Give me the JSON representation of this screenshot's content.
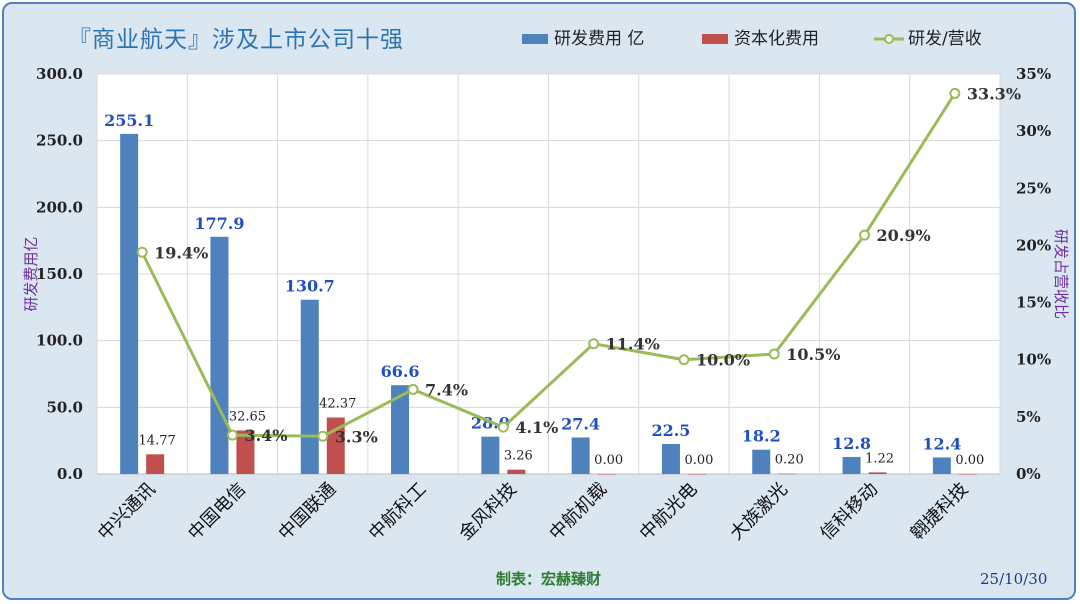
{
  "title": "『商业航天』涉及上市公司十强",
  "credit": "制表：宏赫臻财",
  "date": "25/10/30",
  "colors": {
    "rd": "#4f81bd",
    "cap": "#c0504d",
    "ratio": "#9bbb59",
    "bar_label": "#1f4fc3",
    "axis_label": "#7030a0"
  },
  "chart_data": {
    "type": "bar",
    "categories": [
      "中兴通讯",
      "中国电信",
      "中国联通",
      "中航科工",
      "金风科技",
      "中航机载",
      "中航光电",
      "大族激光",
      "信科移动",
      "翱捷科技"
    ],
    "series": [
      {
        "name": "研发费用 亿",
        "type": "bar",
        "axis": "left",
        "values": [
          255.1,
          177.9,
          130.7,
          66.6,
          28.0,
          27.4,
          22.5,
          18.2,
          12.8,
          12.4
        ],
        "labels": [
          "255.1",
          "177.9",
          "130.7",
          "66.6",
          "28.0",
          "27.4",
          "22.5",
          "18.2",
          "12.8",
          "12.4"
        ]
      },
      {
        "name": "资本化费用",
        "type": "bar",
        "axis": "left",
        "values": [
          14.77,
          32.65,
          42.37,
          null,
          3.26,
          0.0,
          0.0,
          0.2,
          1.22,
          0.0
        ],
        "labels": [
          "14.77",
          "32.65",
          "42.37",
          "",
          "3.26",
          "0.00",
          "0.00",
          "0.20",
          "1.22",
          "0.00"
        ]
      },
      {
        "name": "研发/营收",
        "type": "line",
        "axis": "right",
        "values": [
          19.4,
          3.4,
          3.3,
          7.4,
          4.1,
          11.4,
          10.0,
          10.5,
          20.9,
          33.3
        ],
        "labels": [
          "19.4%",
          "3.4%",
          "3.3%",
          "7.4%",
          "4.1%",
          "11.4%",
          "10.0%",
          "10.5%",
          "20.9%",
          "33.3%"
        ]
      }
    ],
    "y_left": {
      "label": "研发费用亿",
      "ylim": [
        0,
        300
      ],
      "ticks": [
        "0.0",
        "50.0",
        "100.0",
        "150.0",
        "200.0",
        "250.0",
        "300.0"
      ]
    },
    "y_right": {
      "label": "研发占营收比",
      "ylim": [
        0,
        35
      ],
      "ticks": [
        "0%",
        "5%",
        "10%",
        "15%",
        "20%",
        "25%",
        "30%",
        "35%"
      ]
    },
    "grid": true,
    "legend_position": "top-right"
  }
}
